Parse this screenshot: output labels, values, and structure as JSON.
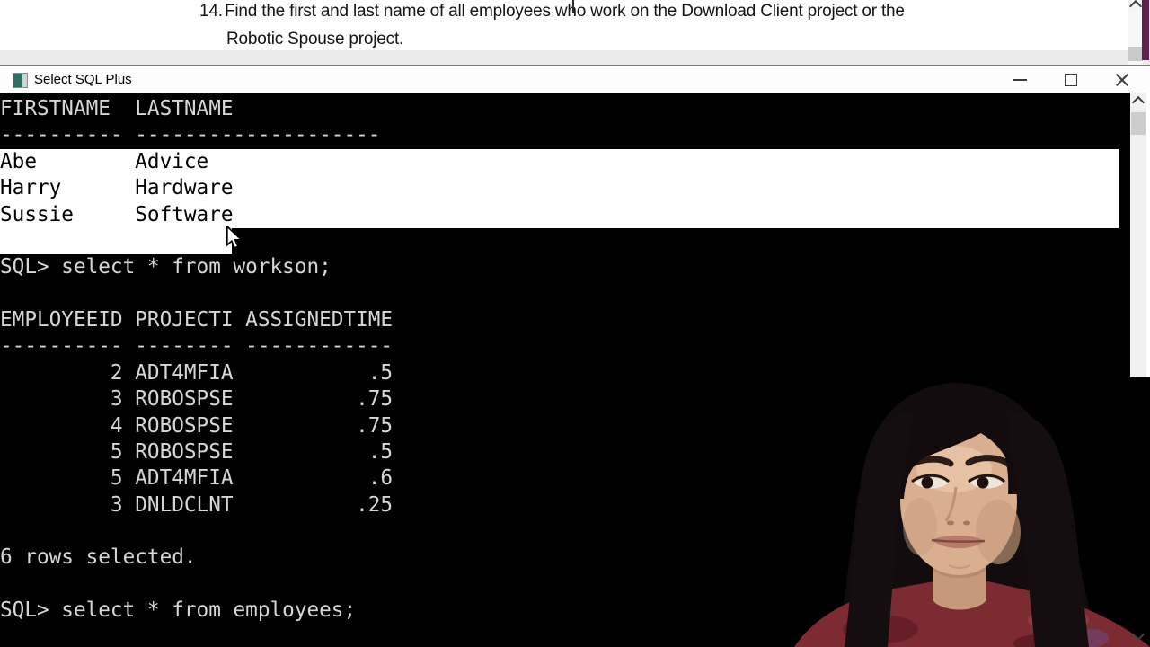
{
  "question": {
    "number": "14.",
    "line1": "Find the first and last name of all employees who work on the Download Client project or the",
    "line2": "Robotic Spouse project."
  },
  "window": {
    "title": "Select SQL Plus"
  },
  "icons": {
    "app_icon": "sqlplus-console",
    "minimize": "minimize-dash",
    "maximize": "maximize-square",
    "close": "close-x",
    "scroll_up": "chevron-up",
    "scroll_down": "chevron-down",
    "mouse": "arrow-pointer"
  },
  "terminal": {
    "lines": [
      {
        "text": "FIRSTNAME  LASTNAME",
        "selected": "none"
      },
      {
        "text": "---------- --------------------",
        "selected": "none"
      },
      {
        "text": "Abe        Advice",
        "selected": "full"
      },
      {
        "text": "Harry      Hardware",
        "selected": "full"
      },
      {
        "text": "Sussie     Software",
        "selected": "full"
      },
      {
        "text": "",
        "selected": "partial"
      },
      {
        "text": "SQL> select * from workson;",
        "selected": "none"
      },
      {
        "text": "",
        "selected": "none"
      },
      {
        "text": "EMPLOYEEID PROJECTI ASSIGNEDTIME",
        "selected": "none"
      },
      {
        "text": "---------- -------- ------------",
        "selected": "none"
      },
      {
        "text": "         2 ADT4MFIA           .5",
        "selected": "none"
      },
      {
        "text": "         3 ROBOSPSE          .75",
        "selected": "none"
      },
      {
        "text": "         4 ROBOSPSE          .75",
        "selected": "none"
      },
      {
        "text": "         5 ROBOSPSE           .5",
        "selected": "none"
      },
      {
        "text": "         5 ADT4MFIA           .6",
        "selected": "none"
      },
      {
        "text": "         3 DNLDCLNT          .25",
        "selected": "none"
      },
      {
        "text": "",
        "selected": "none"
      },
      {
        "text": "6 rows selected.",
        "selected": "none"
      },
      {
        "text": "",
        "selected": "none"
      },
      {
        "text": "SQL> select * from employees;",
        "selected": "none"
      }
    ],
    "tables": [
      {
        "columns": [
          "FIRSTNAME",
          "LASTNAME"
        ],
        "rows": [
          [
            "Abe",
            "Advice"
          ],
          [
            "Harry",
            "Hardware"
          ],
          [
            "Sussie",
            "Software"
          ]
        ]
      },
      {
        "columns": [
          "EMPLOYEEID",
          "PROJECTI",
          "ASSIGNEDTIME"
        ],
        "rows": [
          [
            "2",
            "ADT4MFIA",
            ".5"
          ],
          [
            "3",
            "ROBOSPSE",
            ".75"
          ],
          [
            "4",
            "ROBOSPSE",
            ".75"
          ],
          [
            "5",
            "ROBOSPSE",
            ".5"
          ],
          [
            "5",
            "ADT4MFIA",
            ".6"
          ],
          [
            "3",
            "DNLDCLNT",
            ".25"
          ]
        ]
      }
    ],
    "status_line": "6 rows selected.",
    "commands": [
      "select * from workson;",
      "select * from employees;"
    ]
  },
  "colors": {
    "terminal_bg": "#000000",
    "terminal_fg": "#d6d6d6",
    "selection_bg": "#ffffff",
    "selection_fg": "#000000",
    "titlebar_bg": "#fdfdfd",
    "document_bg": "#ffffff",
    "purple_strip": "#5e2150",
    "app_icon_teal": "#2f6e62",
    "sweater_maroon": "#7d2b33"
  }
}
